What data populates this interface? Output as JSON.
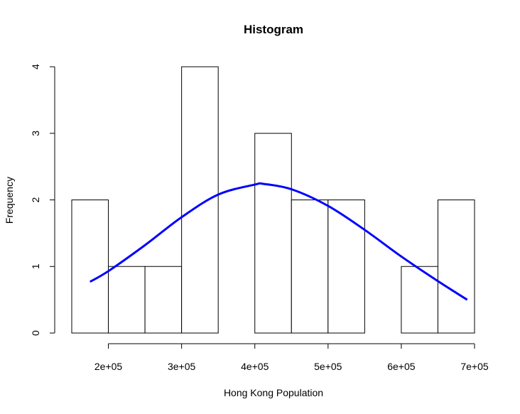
{
  "chart_data": {
    "type": "bar",
    "title": "Histogram",
    "xlabel": "Hong Kong Population",
    "ylabel": "Frequency",
    "bin_edges": [
      150000,
      200000,
      250000,
      300000,
      350000,
      400000,
      450000,
      500000,
      550000,
      600000,
      650000,
      700000
    ],
    "values": [
      2,
      1,
      1,
      4,
      0,
      3,
      2,
      2,
      0,
      1,
      2
    ],
    "x_ticks": [
      200000,
      300000,
      400000,
      500000,
      600000,
      700000
    ],
    "x_tick_labels": [
      "2e+05",
      "3e+05",
      "4e+05",
      "5e+05",
      "6e+05",
      "7e+05"
    ],
    "y_ticks": [
      0,
      1,
      2,
      3,
      4
    ],
    "y_tick_labels": [
      "0",
      "1",
      "2",
      "3",
      "4"
    ],
    "xlim": [
      150000,
      700000
    ],
    "ylim": [
      0,
      4
    ],
    "grid": false,
    "overlay": {
      "type": "line",
      "color": "#0000ff",
      "x": [
        175000,
        200000,
        250000,
        300000,
        350000,
        400000,
        412000,
        450000,
        500000,
        550000,
        600000,
        650000,
        690000
      ],
      "y": [
        0.77,
        0.93,
        1.32,
        1.74,
        2.08,
        2.23,
        2.24,
        2.16,
        1.91,
        1.55,
        1.15,
        0.78,
        0.5
      ]
    }
  }
}
